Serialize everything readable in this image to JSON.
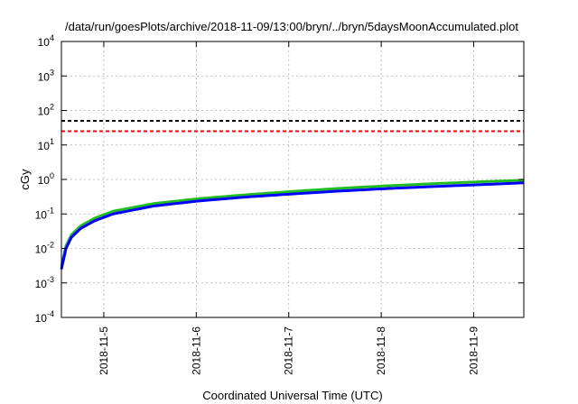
{
  "chart_data": {
    "type": "line",
    "title": "/data/run/goesPlots/archive/2018-11-09/13:00/bryn/../bryn/5daysMoonAccumulated.plot",
    "xlabel": "Coordinated Universal Time (UTC)",
    "ylabel": "cGy",
    "yscale": "log",
    "ylim": [
      0.0001,
      10000
    ],
    "xlim": [
      "2018-11-04 13:00",
      "2018-11-09 13:00"
    ],
    "x_ticks": [
      "2018-11-5",
      "2018-11-6",
      "2018-11-7",
      "2018-11-8",
      "2018-11-9"
    ],
    "y_ticks": [
      {
        "base": "10",
        "exp": "-4"
      },
      {
        "base": "10",
        "exp": "-3"
      },
      {
        "base": "10",
        "exp": "-2"
      },
      {
        "base": "10",
        "exp": "-1"
      },
      {
        "base": "10",
        "exp": "0"
      },
      {
        "base": "10",
        "exp": "1"
      },
      {
        "base": "10",
        "exp": "2"
      },
      {
        "base": "10",
        "exp": "3"
      },
      {
        "base": "10",
        "exp": "4"
      }
    ],
    "grid": true,
    "reference_lines": [
      {
        "y": 50,
        "color": "#000000",
        "style": "dashed"
      },
      {
        "y": 25,
        "color": "#ff0000",
        "style": "dashed"
      }
    ],
    "series": [
      {
        "color": "#22bb22",
        "x": [
          "2018-11-04 13:00",
          "2018-11-04 14:12",
          "2018-11-04 15:36",
          "2018-11-04 18:00",
          "2018-11-04 21:36",
          "2018-11-05 02:24",
          "2018-11-05 13:00",
          "2018-11-06 01:00",
          "2018-11-06 13:00",
          "2018-11-07 01:00",
          "2018-11-07 13:00",
          "2018-11-08 01:00",
          "2018-11-08 13:00",
          "2018-11-09 01:00",
          "2018-11-09 13:00"
        ],
        "values": [
          0.003,
          0.012,
          0.025,
          0.045,
          0.075,
          0.12,
          0.2,
          0.28,
          0.36,
          0.45,
          0.55,
          0.65,
          0.75,
          0.85,
          0.95
        ]
      },
      {
        "color": "#0000ff",
        "x": [
          "2018-11-04 13:00",
          "2018-11-04 14:12",
          "2018-11-04 15:36",
          "2018-11-04 18:00",
          "2018-11-04 21:36",
          "2018-11-05 02:24",
          "2018-11-05 13:00",
          "2018-11-06 01:00",
          "2018-11-06 13:00",
          "2018-11-07 01:00",
          "2018-11-07 13:00",
          "2018-11-08 01:00",
          "2018-11-08 13:00",
          "2018-11-09 01:00",
          "2018-11-09 13:00"
        ],
        "values": [
          0.0025,
          0.01,
          0.021,
          0.038,
          0.063,
          0.1,
          0.17,
          0.24,
          0.31,
          0.38,
          0.46,
          0.54,
          0.62,
          0.7,
          0.8
        ]
      }
    ]
  }
}
